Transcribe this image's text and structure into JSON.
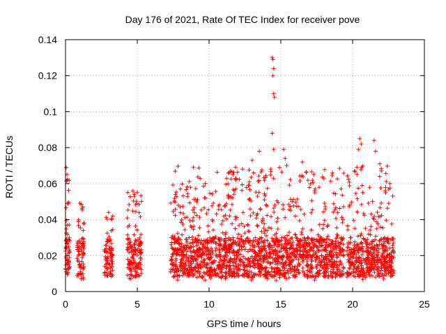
{
  "chart_data": {
    "type": "scatter",
    "title": "Day 176 of 2021, Rate Of TEC Index for receiver pove",
    "xlabel": "GPS time / hours",
    "ylabel": "ROTI / TECUs",
    "xlim": [
      0,
      25
    ],
    "ylim": [
      0,
      0.14
    ],
    "x_ticks": [
      0,
      5,
      10,
      15,
      20,
      25
    ],
    "x_tick_labels": [
      "0",
      "5",
      "10",
      "15",
      "20",
      "25"
    ],
    "y_ticks": [
      0,
      0.02,
      0.04,
      0.06,
      0.08,
      0.1,
      0.12,
      0.14
    ],
    "y_tick_labels": [
      "0",
      "0.02",
      "0.04",
      "0.06",
      "0.08",
      "0.1",
      "0.12",
      "0.14"
    ],
    "grid": true,
    "marker": "+",
    "series_color": "#ff0000",
    "clusters": [
      {
        "x_range": [
          0.0,
          0.3
        ],
        "y_range": [
          0.006,
          0.05
        ],
        "max": 0.069
      },
      {
        "x_range": [
          0.8,
          1.3
        ],
        "y_range": [
          0.006,
          0.04
        ],
        "max": 0.049
      },
      {
        "x_range": [
          2.7,
          3.3
        ],
        "y_range": [
          0.007,
          0.04
        ],
        "max": 0.044
      },
      {
        "x_range": [
          4.3,
          5.3
        ],
        "y_range": [
          0.007,
          0.045
        ],
        "max": 0.056
      },
      {
        "x_range": [
          7.3,
          19.4
        ],
        "y_range": [
          0.006,
          0.05
        ],
        "max": 0.13
      },
      {
        "x_range": [
          19.6,
          22.9
        ],
        "y_range": [
          0.006,
          0.05
        ],
        "max": 0.085
      }
    ],
    "peaks": [
      {
        "x": 0.05,
        "y": 0.069
      },
      {
        "x": 0.1,
        "y": 0.065
      },
      {
        "x": 0.15,
        "y": 0.049
      },
      {
        "x": 1.0,
        "y": 0.049
      },
      {
        "x": 1.2,
        "y": 0.047
      },
      {
        "x": 3.0,
        "y": 0.044
      },
      {
        "x": 4.7,
        "y": 0.056
      },
      {
        "x": 5.0,
        "y": 0.055
      },
      {
        "x": 8.0,
        "y": 0.057
      },
      {
        "x": 9.2,
        "y": 0.051
      },
      {
        "x": 13.0,
        "y": 0.073
      },
      {
        "x": 13.5,
        "y": 0.078
      },
      {
        "x": 12.8,
        "y": 0.061
      },
      {
        "x": 14.4,
        "y": 0.13
      },
      {
        "x": 14.45,
        "y": 0.129
      },
      {
        "x": 14.5,
        "y": 0.124
      },
      {
        "x": 14.45,
        "y": 0.12
      },
      {
        "x": 14.5,
        "y": 0.11
      },
      {
        "x": 14.55,
        "y": 0.108
      },
      {
        "x": 14.4,
        "y": 0.088
      },
      {
        "x": 14.5,
        "y": 0.079
      },
      {
        "x": 14.3,
        "y": 0.068
      },
      {
        "x": 15.2,
        "y": 0.079
      },
      {
        "x": 15.3,
        "y": 0.074
      },
      {
        "x": 14.9,
        "y": 0.069
      },
      {
        "x": 16.5,
        "y": 0.072
      },
      {
        "x": 17.3,
        "y": 0.065
      },
      {
        "x": 18.0,
        "y": 0.063
      },
      {
        "x": 18.6,
        "y": 0.066
      },
      {
        "x": 19.2,
        "y": 0.057
      },
      {
        "x": 20.5,
        "y": 0.085
      },
      {
        "x": 20.6,
        "y": 0.082
      },
      {
        "x": 20.4,
        "y": 0.079
      },
      {
        "x": 21.5,
        "y": 0.084
      },
      {
        "x": 21.6,
        "y": 0.078
      },
      {
        "x": 21.9,
        "y": 0.071
      },
      {
        "x": 22.0,
        "y": 0.067
      },
      {
        "x": 20.3,
        "y": 0.065
      },
      {
        "x": 22.6,
        "y": 0.06
      }
    ]
  }
}
